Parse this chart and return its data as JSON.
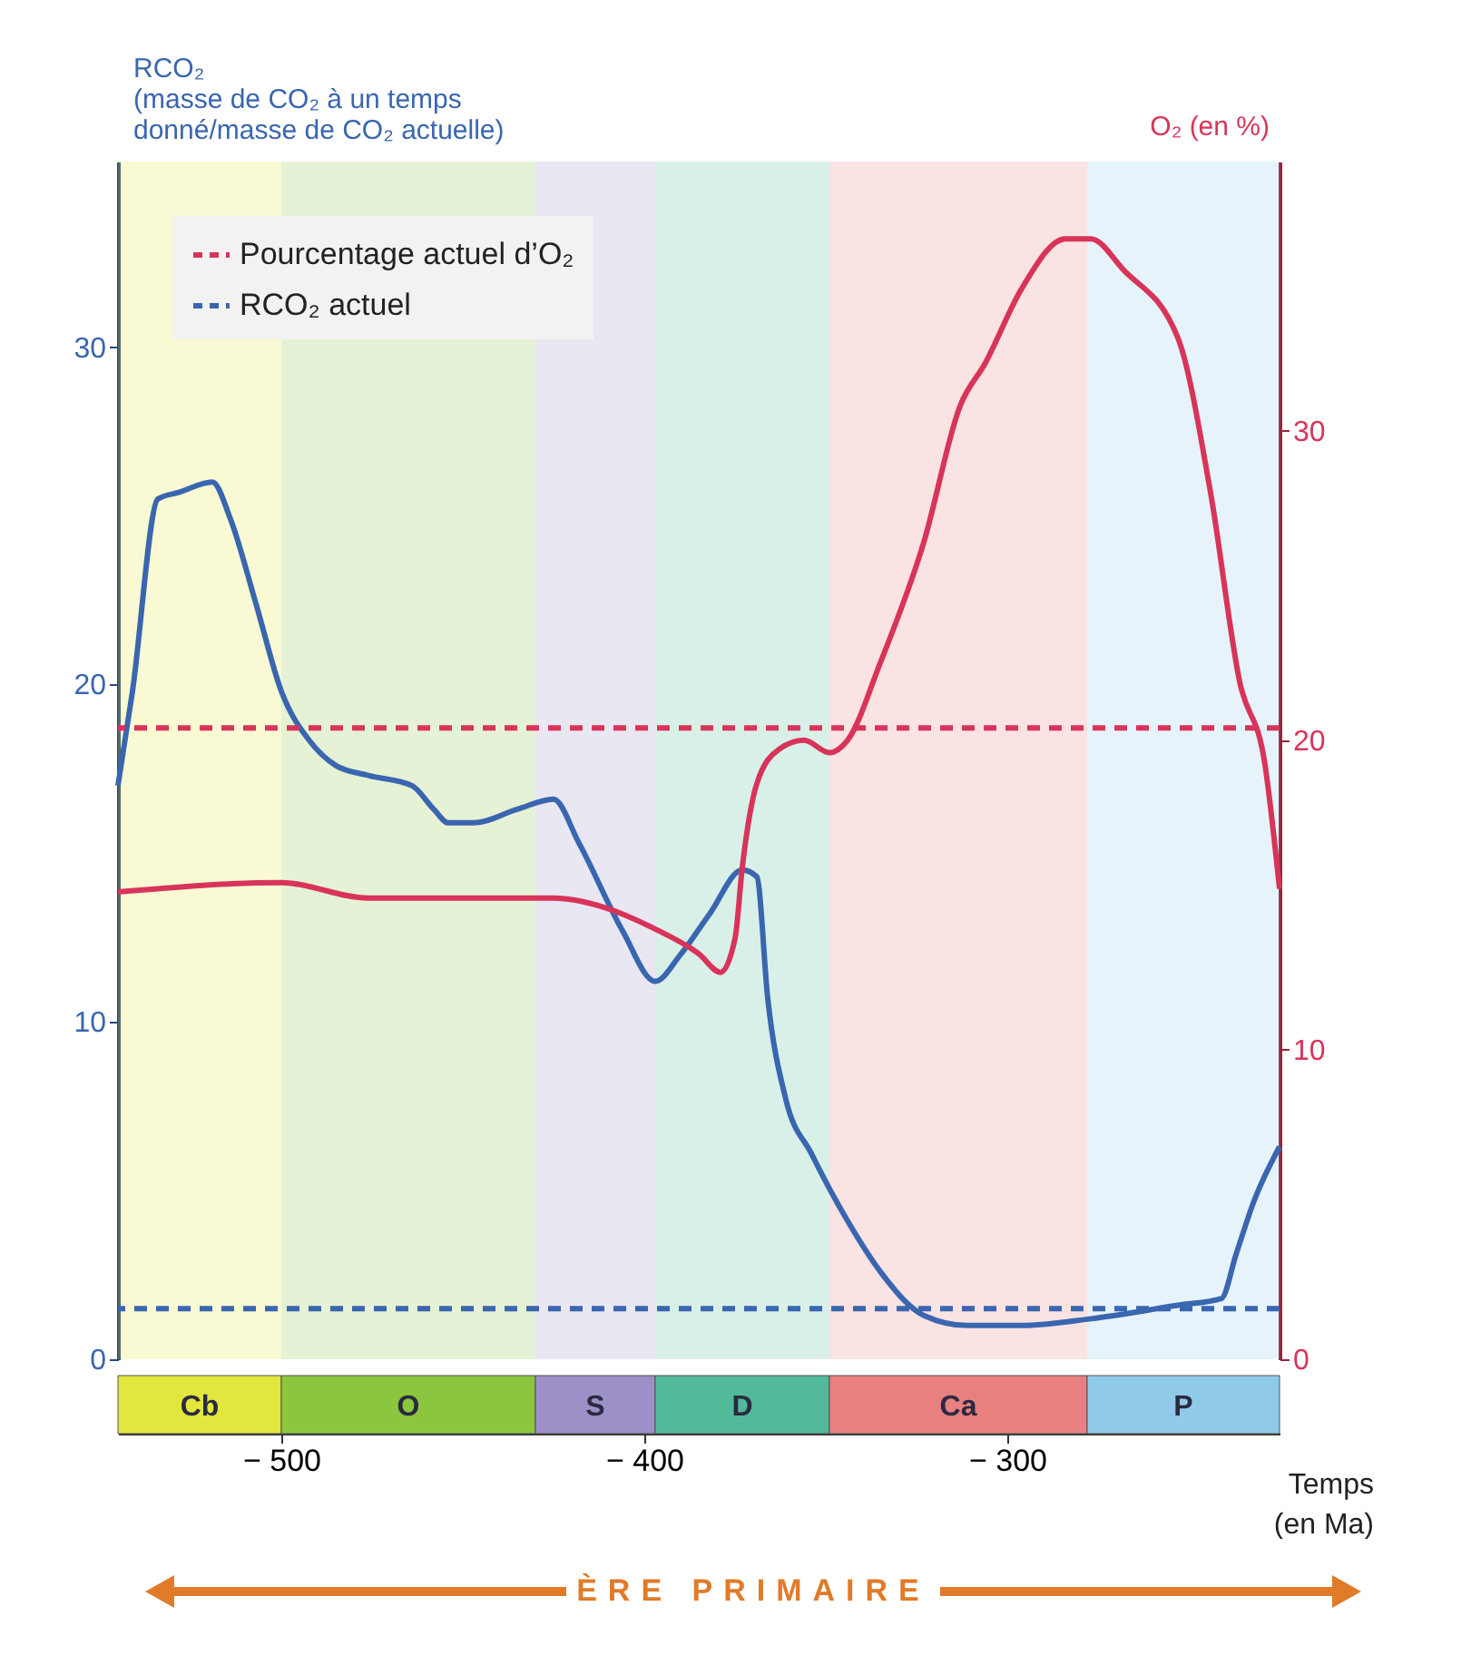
{
  "chart_data": {
    "type": "line",
    "xlabel": "Temps (en Ma)",
    "ylabel": "RCO₂ (masse de CO₂ à un temps donné/masse de CO₂ actuelle)",
    "y2label": "O₂ (en %)",
    "xlim": [
      -545,
      -225
    ],
    "xticks": [
      -500,
      -400,
      -300
    ],
    "ylim": [
      0,
      35.5
    ],
    "yticks": [
      0,
      10,
      20,
      30
    ],
    "y2lim": [
      0,
      38.7
    ],
    "y2ticks": [
      0,
      10,
      20,
      30
    ],
    "legend": "top left",
    "series": [
      {
        "color": "#3a66b0",
        "x": [
          -545,
          -541,
          -534,
          -528,
          -519,
          -514,
          -507,
          -500,
          -492,
          -485,
          -476,
          -464,
          -458,
          -454,
          -447,
          -435,
          -425,
          -418,
          -406,
          -397,
          -390,
          -382,
          -373,
          -369,
          -366,
          -361,
          -354,
          -344,
          -335,
          -323,
          -311,
          -296,
          -277,
          -253,
          -241,
          -237,
          -232,
          -225
        ],
        "values": [
          17.0,
          19.8,
          25.5,
          25.7,
          26.0,
          24.9,
          22.4,
          19.8,
          18.3,
          17.6,
          17.3,
          17.0,
          16.3,
          15.9,
          15.9,
          16.3,
          16.6,
          15.3,
          12.7,
          11.2,
          12.0,
          13.2,
          14.5,
          14.3,
          10.7,
          7.7,
          6.1,
          4.1,
          2.6,
          1.3,
          1.0,
          1.0,
          1.2,
          1.6,
          1.8,
          3.1,
          4.7,
          6.3
        ]
      },
      {
        "color": "#d8345a",
        "axis": "y2",
        "x": [
          -545,
          -500,
          -476,
          -425,
          -411,
          -397,
          -385,
          -379,
          -375,
          -373,
          -369,
          -363,
          -356,
          -349,
          -344,
          -335,
          -323,
          -313,
          -306,
          -296,
          -284,
          -277,
          -268,
          -253,
          -244,
          -236,
          -229,
          -225
        ],
        "values": [
          15.1,
          15.4,
          14.9,
          14.9,
          14.6,
          13.9,
          13.1,
          12.5,
          13.6,
          15.9,
          18.6,
          19.7,
          20.0,
          19.6,
          20.0,
          22.5,
          26.4,
          30.8,
          32.2,
          34.6,
          36.2,
          36.2,
          35.2,
          33.0,
          28.0,
          21.9,
          19.2,
          15.2
        ]
      }
    ],
    "ref_lines": [
      {
        "axis": "y2",
        "value": 20.4,
        "label": "Pourcentage actuel d’O₂",
        "color": "#d8345a",
        "line_style": "dashed"
      },
      {
        "axis": "y",
        "value": 1.5,
        "label": "RCO₂ actuel",
        "color": "#3a66b0",
        "line_style": "dashed"
      }
    ],
    "bands": [
      {
        "axis": "x",
        "from": -545,
        "to": -500,
        "label": "Cb",
        "color": "#e3e63c"
      },
      {
        "axis": "x",
        "from": -500,
        "to": -430,
        "label": "O",
        "color": "#8cc63f"
      },
      {
        "axis": "x",
        "from": -430,
        "to": -397,
        "label": "S",
        "color": "#9d90c6"
      },
      {
        "axis": "x",
        "from": -397,
        "to": -349,
        "label": "D",
        "color": "#52b99a"
      },
      {
        "axis": "x",
        "from": -349,
        "to": -278,
        "label": "Ca",
        "color": "#e98080"
      },
      {
        "axis": "x",
        "from": -278,
        "to": -225,
        "label": "P",
        "color": "#8fcae8"
      }
    ],
    "annotations": [
      "ÈRE PRIMAIRE"
    ]
  }
}
